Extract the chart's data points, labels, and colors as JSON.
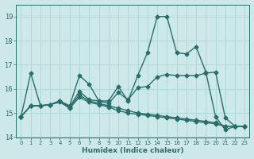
{
  "title": "",
  "xlabel": "Humidex (Indice chaleur)",
  "ylabel": "",
  "bg_color": "#cce8e8",
  "grid_color": "#b0d8d8",
  "line_color": "#2a6e6a",
  "xlim": [
    -0.5,
    23.5
  ],
  "ylim": [
    14.0,
    19.5
  ],
  "yticks": [
    14,
    15,
    16,
    17,
    18,
    19
  ],
  "xticks": [
    0,
    1,
    2,
    3,
    4,
    5,
    6,
    7,
    8,
    9,
    10,
    11,
    12,
    13,
    14,
    15,
    16,
    17,
    18,
    19,
    20,
    21,
    22,
    23
  ],
  "series": [
    {
      "x": [
        0,
        1,
        2,
        3,
        4,
        5,
        6,
        7,
        8,
        9,
        10,
        11,
        12,
        13,
        14,
        15,
        16,
        17,
        18,
        19,
        20,
        21,
        22,
        23
      ],
      "y": [
        14.85,
        16.65,
        15.3,
        15.35,
        15.5,
        15.3,
        16.55,
        16.2,
        15.5,
        15.5,
        16.1,
        15.5,
        16.55,
        17.5,
        19.0,
        19.0,
        17.5,
        17.45,
        17.75,
        16.7,
        14.85,
        14.3,
        14.45,
        14.45
      ]
    },
    {
      "x": [
        0,
        1,
        2,
        3,
        4,
        5,
        6,
        7,
        8,
        9,
        10,
        11,
        12,
        13,
        14,
        15,
        16,
        17,
        18,
        19,
        20,
        21,
        22,
        23
      ],
      "y": [
        14.85,
        15.3,
        15.3,
        15.35,
        15.5,
        15.25,
        15.9,
        15.55,
        15.5,
        15.4,
        15.85,
        15.55,
        16.05,
        16.1,
        16.5,
        16.6,
        16.55,
        16.55,
        16.55,
        16.65,
        16.7,
        14.8,
        14.45,
        14.45
      ]
    },
    {
      "x": [
        0,
        1,
        2,
        3,
        4,
        5,
        6,
        7,
        8,
        9,
        10,
        11,
        12,
        13,
        14,
        15,
        16,
        17,
        18,
        19,
        20,
        21,
        22,
        23
      ],
      "y": [
        14.85,
        15.3,
        15.3,
        15.35,
        15.5,
        15.25,
        15.75,
        15.5,
        15.4,
        15.3,
        15.2,
        15.1,
        15.0,
        14.95,
        14.9,
        14.85,
        14.8,
        14.75,
        14.7,
        14.65,
        14.6,
        14.45,
        14.45,
        14.45
      ]
    },
    {
      "x": [
        0,
        1,
        2,
        3,
        4,
        5,
        6,
        7,
        8,
        9,
        10,
        11,
        12,
        13,
        14,
        15,
        16,
        17,
        18,
        19,
        20,
        21,
        22,
        23
      ],
      "y": [
        14.85,
        15.3,
        15.3,
        15.35,
        15.45,
        15.2,
        15.65,
        15.45,
        15.35,
        15.25,
        15.1,
        15.0,
        14.95,
        14.9,
        14.85,
        14.8,
        14.75,
        14.7,
        14.65,
        14.6,
        14.55,
        14.45,
        14.45,
        14.45
      ]
    }
  ],
  "marker": "D",
  "markersize": 2.5,
  "linewidth": 1.0
}
